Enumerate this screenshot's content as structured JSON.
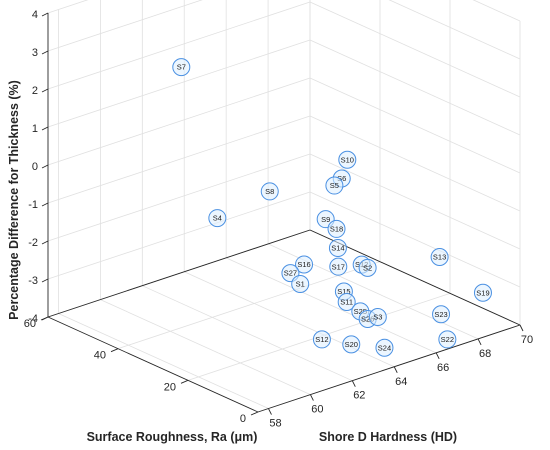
{
  "chart_data": {
    "type": "scatter",
    "title": "",
    "xlabel": "Shore D Hardness (HD)",
    "ylabel": "Surface Roughness, Ra (μm)",
    "zlabel": "Percentage Difference for Thickness (%)",
    "xlim": [
      57.5,
      70
    ],
    "ylim": [
      0,
      60
    ],
    "zlim": [
      -4,
      4
    ],
    "xticks": [
      "58",
      "60",
      "62",
      "64",
      "66",
      "68",
      "70"
    ],
    "yticks": [
      "0",
      "20",
      "40",
      "60"
    ],
    "zticks": [
      "-4",
      "-3",
      "-2",
      "-1",
      "0",
      "1",
      "2",
      "3",
      "4"
    ],
    "grid": true,
    "marker_color": "#4a90e2",
    "points": [
      {
        "label": "S7",
        "x": 58.8,
        "y": 29.7,
        "z": 3.6
      },
      {
        "label": "S4",
        "x": 58.7,
        "y": 18.8,
        "z": 0.1
      },
      {
        "label": "S8",
        "x": 61.3,
        "y": 19.4,
        "z": 0.3
      },
      {
        "label": "S27",
        "x": 60.6,
        "y": 9.3,
        "z": -1.3
      },
      {
        "label": "S16",
        "x": 61.5,
        "y": 10.8,
        "z": -1.3
      },
      {
        "label": "S1",
        "x": 60.9,
        "y": 8.3,
        "z": -1.6
      },
      {
        "label": "S9",
        "x": 63.0,
        "y": 13.6,
        "z": -0.5
      },
      {
        "label": "S18",
        "x": 63.4,
        "y": 12.9,
        "z": -0.8
      },
      {
        "label": "S14",
        "x": 63.2,
        "y": 11.3,
        "z": -1.2
      },
      {
        "label": "S17",
        "x": 63.0,
        "y": 10.0,
        "z": -1.6
      },
      {
        "label": "S5",
        "x": 63.9,
        "y": 16.5,
        "z": 0.1
      },
      {
        "label": "S6",
        "x": 64.3,
        "y": 16.8,
        "z": 0.2
      },
      {
        "label": "S10",
        "x": 64.9,
        "y": 18.8,
        "z": 0.5
      },
      {
        "label": "S12a",
        "x": 64.0,
        "y": 9.3,
        "z": -1.7
      },
      {
        "label": "S2",
        "x": 64.2,
        "y": 8.8,
        "z": -1.8
      },
      {
        "label": "S15",
        "x": 62.8,
        "y": 7.2,
        "z": -2.1
      },
      {
        "label": "S11",
        "x": 62.7,
        "y": 5.8,
        "z": -2.3
      },
      {
        "label": "S13",
        "x": 67.3,
        "y": 6.8,
        "z": -2.0
      },
      {
        "label": "S25",
        "x": 63.2,
        "y": 4.9,
        "z": -2.6
      },
      {
        "label": "S26",
        "x": 63.4,
        "y": 4.0,
        "z": -2.8
      },
      {
        "label": "S3",
        "x": 63.8,
        "y": 3.5,
        "z": -2.8
      },
      {
        "label": "S12",
        "x": 60.9,
        "y": 2.1,
        "z": -2.8
      },
      {
        "label": "S20",
        "x": 62.1,
        "y": 0.9,
        "z": -3.1
      },
      {
        "label": "S24",
        "x": 63.5,
        "y": -0.2,
        "z": -3.4
      },
      {
        "label": "S23",
        "x": 66.4,
        "y": 1.0,
        "z": -3.1
      },
      {
        "label": "S22",
        "x": 66.2,
        "y": -2.0,
        "z": -3.6
      },
      {
        "label": "S19",
        "x": 68.4,
        "y": 1.0,
        "z": -2.9
      }
    ]
  }
}
